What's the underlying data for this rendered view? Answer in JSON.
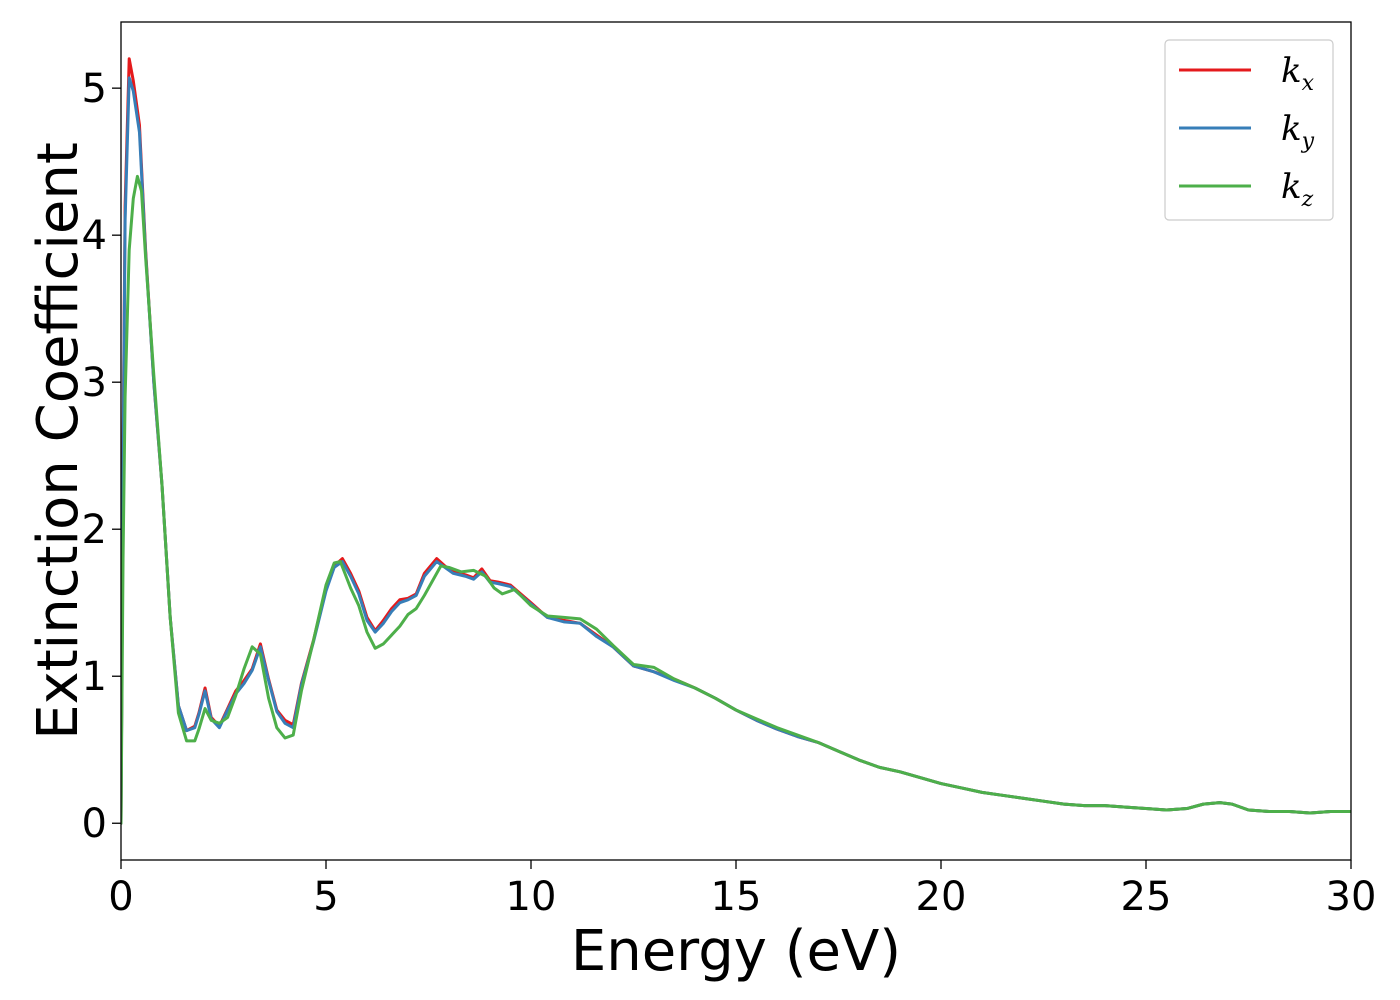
{
  "chart_data": {
    "type": "line",
    "title": "",
    "xlabel": "Energy (eV)",
    "ylabel": "Extinction Coefficient",
    "xlim": [
      0,
      30
    ],
    "ylim": [
      -0.25,
      5.45
    ],
    "xticks": [
      0,
      5,
      10,
      15,
      20,
      25,
      30
    ],
    "yticks": [
      0,
      1,
      2,
      3,
      4,
      5
    ],
    "grid": false,
    "legend_position": "top-right",
    "series": [
      {
        "name": "k_x",
        "label_base": "k",
        "label_sub": "x",
        "color": "#e41a1c",
        "points": [
          [
            0,
            0
          ],
          [
            0.05,
            2.5
          ],
          [
            0.1,
            4.2
          ],
          [
            0.2,
            5.2
          ],
          [
            0.3,
            5.05
          ],
          [
            0.45,
            4.75
          ],
          [
            0.6,
            3.9
          ],
          [
            0.8,
            3.0
          ],
          [
            1.0,
            2.3
          ],
          [
            1.2,
            1.4
          ],
          [
            1.4,
            0.8
          ],
          [
            1.6,
            0.63
          ],
          [
            1.8,
            0.66
          ],
          [
            1.9,
            0.75
          ],
          [
            2.05,
            0.92
          ],
          [
            2.2,
            0.72
          ],
          [
            2.4,
            0.66
          ],
          [
            2.6,
            0.78
          ],
          [
            2.8,
            0.9
          ],
          [
            3.0,
            0.97
          ],
          [
            3.2,
            1.05
          ],
          [
            3.4,
            1.22
          ],
          [
            3.6,
            0.98
          ],
          [
            3.8,
            0.77
          ],
          [
            4.0,
            0.7
          ],
          [
            4.2,
            0.67
          ],
          [
            4.4,
            0.95
          ],
          [
            4.7,
            1.25
          ],
          [
            5.0,
            1.6
          ],
          [
            5.2,
            1.75
          ],
          [
            5.4,
            1.8
          ],
          [
            5.6,
            1.7
          ],
          [
            5.8,
            1.58
          ],
          [
            6.0,
            1.4
          ],
          [
            6.2,
            1.31
          ],
          [
            6.4,
            1.38
          ],
          [
            6.6,
            1.46
          ],
          [
            6.8,
            1.52
          ],
          [
            7.0,
            1.53
          ],
          [
            7.2,
            1.56
          ],
          [
            7.4,
            1.7
          ],
          [
            7.7,
            1.8
          ],
          [
            7.9,
            1.75
          ],
          [
            8.1,
            1.71
          ],
          [
            8.4,
            1.69
          ],
          [
            8.6,
            1.67
          ],
          [
            8.8,
            1.73
          ],
          [
            9.0,
            1.65
          ],
          [
            9.2,
            1.64
          ],
          [
            9.5,
            1.62
          ],
          [
            10.0,
            1.5
          ],
          [
            10.4,
            1.4
          ],
          [
            10.8,
            1.38
          ],
          [
            11.2,
            1.36
          ],
          [
            11.6,
            1.28
          ],
          [
            12.0,
            1.2
          ],
          [
            12.5,
            1.07
          ],
          [
            13.0,
            1.03
          ],
          [
            13.5,
            0.98
          ],
          [
            14.0,
            0.92
          ],
          [
            14.5,
            0.85
          ],
          [
            15.0,
            0.77
          ],
          [
            15.5,
            0.7
          ],
          [
            16.0,
            0.64
          ],
          [
            16.5,
            0.59
          ],
          [
            17.0,
            0.55
          ],
          [
            17.5,
            0.49
          ],
          [
            18.0,
            0.43
          ],
          [
            18.5,
            0.38
          ],
          [
            19.0,
            0.35
          ],
          [
            19.5,
            0.31
          ],
          [
            20.0,
            0.27
          ],
          [
            20.5,
            0.24
          ],
          [
            21.0,
            0.21
          ],
          [
            21.5,
            0.19
          ],
          [
            22.0,
            0.17
          ],
          [
            22.5,
            0.15
          ],
          [
            23.0,
            0.13
          ],
          [
            23.5,
            0.12
          ],
          [
            24.0,
            0.12
          ],
          [
            24.5,
            0.11
          ],
          [
            25.0,
            0.1
          ],
          [
            25.5,
            0.09
          ],
          [
            26.0,
            0.1
          ],
          [
            26.4,
            0.13
          ],
          [
            26.8,
            0.14
          ],
          [
            27.1,
            0.13
          ],
          [
            27.5,
            0.09
          ],
          [
            28.0,
            0.08
          ],
          [
            28.5,
            0.08
          ],
          [
            29.0,
            0.07
          ],
          [
            29.5,
            0.08
          ],
          [
            30.0,
            0.08
          ]
        ]
      },
      {
        "name": "k_y",
        "label_base": "k",
        "label_sub": "y",
        "color": "#377eb8",
        "points": [
          [
            0,
            0
          ],
          [
            0.05,
            2.4
          ],
          [
            0.1,
            4.1
          ],
          [
            0.2,
            5.07
          ],
          [
            0.3,
            4.98
          ],
          [
            0.45,
            4.7
          ],
          [
            0.6,
            3.88
          ],
          [
            0.8,
            3.0
          ],
          [
            1.0,
            2.3
          ],
          [
            1.2,
            1.4
          ],
          [
            1.4,
            0.8
          ],
          [
            1.6,
            0.63
          ],
          [
            1.8,
            0.65
          ],
          [
            1.9,
            0.74
          ],
          [
            2.05,
            0.9
          ],
          [
            2.2,
            0.71
          ],
          [
            2.4,
            0.65
          ],
          [
            2.6,
            0.77
          ],
          [
            2.8,
            0.88
          ],
          [
            3.0,
            0.95
          ],
          [
            3.2,
            1.04
          ],
          [
            3.4,
            1.2
          ],
          [
            3.6,
            0.97
          ],
          [
            3.8,
            0.76
          ],
          [
            4.0,
            0.68
          ],
          [
            4.2,
            0.65
          ],
          [
            4.4,
            0.94
          ],
          [
            4.7,
            1.24
          ],
          [
            5.0,
            1.58
          ],
          [
            5.2,
            1.74
          ],
          [
            5.4,
            1.78
          ],
          [
            5.6,
            1.68
          ],
          [
            5.8,
            1.56
          ],
          [
            6.0,
            1.38
          ],
          [
            6.2,
            1.3
          ],
          [
            6.4,
            1.36
          ],
          [
            6.6,
            1.44
          ],
          [
            6.8,
            1.5
          ],
          [
            7.0,
            1.52
          ],
          [
            7.2,
            1.55
          ],
          [
            7.4,
            1.68
          ],
          [
            7.7,
            1.78
          ],
          [
            7.9,
            1.74
          ],
          [
            8.1,
            1.7
          ],
          [
            8.4,
            1.68
          ],
          [
            8.6,
            1.66
          ],
          [
            8.8,
            1.71
          ],
          [
            9.0,
            1.64
          ],
          [
            9.2,
            1.63
          ],
          [
            9.5,
            1.61
          ],
          [
            10.0,
            1.49
          ],
          [
            10.4,
            1.4
          ],
          [
            10.8,
            1.37
          ],
          [
            11.2,
            1.36
          ],
          [
            11.6,
            1.27
          ],
          [
            12.0,
            1.2
          ],
          [
            12.5,
            1.07
          ],
          [
            13.0,
            1.03
          ],
          [
            13.5,
            0.97
          ],
          [
            14.0,
            0.92
          ],
          [
            14.5,
            0.85
          ],
          [
            15.0,
            0.77
          ],
          [
            15.5,
            0.7
          ],
          [
            16.0,
            0.64
          ],
          [
            16.5,
            0.59
          ],
          [
            17.0,
            0.55
          ],
          [
            17.5,
            0.49
          ],
          [
            18.0,
            0.43
          ],
          [
            18.5,
            0.38
          ],
          [
            19.0,
            0.35
          ],
          [
            19.5,
            0.31
          ],
          [
            20.0,
            0.27
          ],
          [
            20.5,
            0.24
          ],
          [
            21.0,
            0.21
          ],
          [
            21.5,
            0.19
          ],
          [
            22.0,
            0.17
          ],
          [
            22.5,
            0.15
          ],
          [
            23.0,
            0.13
          ],
          [
            23.5,
            0.12
          ],
          [
            24.0,
            0.12
          ],
          [
            24.5,
            0.11
          ],
          [
            25.0,
            0.1
          ],
          [
            25.5,
            0.09
          ],
          [
            26.0,
            0.1
          ],
          [
            26.4,
            0.13
          ],
          [
            26.8,
            0.14
          ],
          [
            27.1,
            0.13
          ],
          [
            27.5,
            0.09
          ],
          [
            28.0,
            0.08
          ],
          [
            28.5,
            0.08
          ],
          [
            29.0,
            0.07
          ],
          [
            29.5,
            0.08
          ],
          [
            30.0,
            0.08
          ]
        ]
      },
      {
        "name": "k_z",
        "label_base": "k",
        "label_sub": "z",
        "color": "#4daf4a",
        "points": [
          [
            0,
            0
          ],
          [
            0.05,
            1.8
          ],
          [
            0.1,
            2.9
          ],
          [
            0.2,
            3.9
          ],
          [
            0.3,
            4.25
          ],
          [
            0.4,
            4.4
          ],
          [
            0.5,
            4.3
          ],
          [
            0.6,
            3.85
          ],
          [
            0.8,
            3.05
          ],
          [
            1.0,
            2.3
          ],
          [
            1.2,
            1.4
          ],
          [
            1.4,
            0.75
          ],
          [
            1.6,
            0.56
          ],
          [
            1.8,
            0.56
          ],
          [
            1.9,
            0.64
          ],
          [
            2.05,
            0.78
          ],
          [
            2.2,
            0.7
          ],
          [
            2.4,
            0.68
          ],
          [
            2.6,
            0.72
          ],
          [
            2.8,
            0.87
          ],
          [
            3.0,
            1.05
          ],
          [
            3.2,
            1.2
          ],
          [
            3.4,
            1.15
          ],
          [
            3.6,
            0.85
          ],
          [
            3.8,
            0.65
          ],
          [
            4.0,
            0.58
          ],
          [
            4.2,
            0.6
          ],
          [
            4.4,
            0.9
          ],
          [
            4.7,
            1.25
          ],
          [
            5.0,
            1.62
          ],
          [
            5.2,
            1.77
          ],
          [
            5.35,
            1.78
          ],
          [
            5.6,
            1.6
          ],
          [
            5.8,
            1.48
          ],
          [
            6.0,
            1.3
          ],
          [
            6.2,
            1.19
          ],
          [
            6.4,
            1.22
          ],
          [
            6.6,
            1.28
          ],
          [
            6.8,
            1.34
          ],
          [
            7.0,
            1.42
          ],
          [
            7.2,
            1.46
          ],
          [
            7.4,
            1.55
          ],
          [
            7.8,
            1.75
          ],
          [
            8.0,
            1.74
          ],
          [
            8.3,
            1.71
          ],
          [
            8.6,
            1.72
          ],
          [
            8.9,
            1.68
          ],
          [
            9.1,
            1.6
          ],
          [
            9.3,
            1.56
          ],
          [
            9.6,
            1.59
          ],
          [
            10.0,
            1.48
          ],
          [
            10.4,
            1.41
          ],
          [
            10.8,
            1.4
          ],
          [
            11.2,
            1.39
          ],
          [
            11.6,
            1.32
          ],
          [
            12.0,
            1.21
          ],
          [
            12.5,
            1.08
          ],
          [
            13.0,
            1.06
          ],
          [
            13.5,
            0.98
          ],
          [
            14.0,
            0.92
          ],
          [
            14.5,
            0.85
          ],
          [
            15.0,
            0.77
          ],
          [
            15.5,
            0.71
          ],
          [
            16.0,
            0.65
          ],
          [
            16.5,
            0.6
          ],
          [
            17.0,
            0.55
          ],
          [
            17.5,
            0.49
          ],
          [
            18.0,
            0.43
          ],
          [
            18.5,
            0.38
          ],
          [
            19.0,
            0.35
          ],
          [
            19.5,
            0.31
          ],
          [
            20.0,
            0.27
          ],
          [
            20.5,
            0.24
          ],
          [
            21.0,
            0.21
          ],
          [
            21.5,
            0.19
          ],
          [
            22.0,
            0.17
          ],
          [
            22.5,
            0.15
          ],
          [
            23.0,
            0.13
          ],
          [
            23.5,
            0.12
          ],
          [
            24.0,
            0.12
          ],
          [
            24.5,
            0.11
          ],
          [
            25.0,
            0.1
          ],
          [
            25.5,
            0.09
          ],
          [
            26.0,
            0.1
          ],
          [
            26.4,
            0.13
          ],
          [
            26.8,
            0.14
          ],
          [
            27.1,
            0.13
          ],
          [
            27.5,
            0.09
          ],
          [
            28.0,
            0.08
          ],
          [
            28.5,
            0.08
          ],
          [
            29.0,
            0.07
          ],
          [
            29.5,
            0.08
          ],
          [
            30.0,
            0.08
          ]
        ]
      }
    ]
  }
}
